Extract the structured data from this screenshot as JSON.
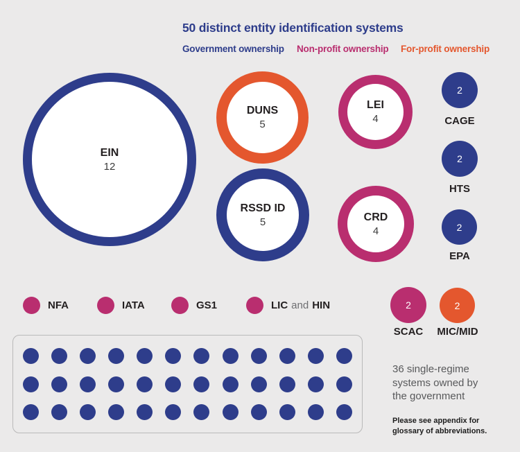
{
  "colors": {
    "government": "#2E3D8B",
    "non_profit": "#B92E6F",
    "for_profit": "#E4572E",
    "background": "#EBEAEA"
  },
  "chart_data": {
    "type": "bubble",
    "title": "50 distinct entity identification systems",
    "total_systems": 50,
    "legend": [
      {
        "label": "Government ownership",
        "color": "#2E3D8B"
      },
      {
        "label": "Non-profit ownership",
        "color": "#B92E6F"
      },
      {
        "label": "For-profit ownership",
        "color": "#E4572E"
      }
    ],
    "bubbles": [
      {
        "name": "EIN",
        "value": 12,
        "ownership": "government",
        "style": "ring"
      },
      {
        "name": "DUNS",
        "value": 5,
        "ownership": "for-profit",
        "style": "ring"
      },
      {
        "name": "RSSD ID",
        "value": 5,
        "ownership": "government",
        "style": "ring"
      },
      {
        "name": "LEI",
        "value": 4,
        "ownership": "non-profit",
        "style": "ring"
      },
      {
        "name": "CRD",
        "value": 4,
        "ownership": "non-profit",
        "style": "ring"
      },
      {
        "name": "CAGE",
        "value": 2,
        "ownership": "government",
        "style": "solid"
      },
      {
        "name": "HTS",
        "value": 2,
        "ownership": "government",
        "style": "solid"
      },
      {
        "name": "EPA",
        "value": 2,
        "ownership": "government",
        "style": "solid"
      },
      {
        "name": "SCAC",
        "value": 2,
        "ownership": "non-profit",
        "style": "solid"
      },
      {
        "name": "MIC/MID",
        "value": 2,
        "ownership": "for-profit",
        "style": "solid"
      },
      {
        "name": "NFA",
        "value": 1,
        "ownership": "non-profit",
        "style": "dot"
      },
      {
        "name": "IATA",
        "value": 1,
        "ownership": "non-profit",
        "style": "dot"
      },
      {
        "name": "GS1",
        "value": 1,
        "ownership": "non-profit",
        "style": "dot"
      },
      {
        "name": "LIC and HIN",
        "value": 1,
        "ownership": "non-profit",
        "style": "dot"
      }
    ],
    "grid": {
      "count": 36,
      "columns": 12,
      "rows": 3,
      "ownership": "government",
      "caption": "36 single-regime systems owned by the government"
    },
    "footnote": "Please see appendix for glossary of abbreviations."
  },
  "ui": {
    "lic_hin_display": {
      "part1": "LIC",
      "part2": "and",
      "part3": "HIN"
    }
  }
}
